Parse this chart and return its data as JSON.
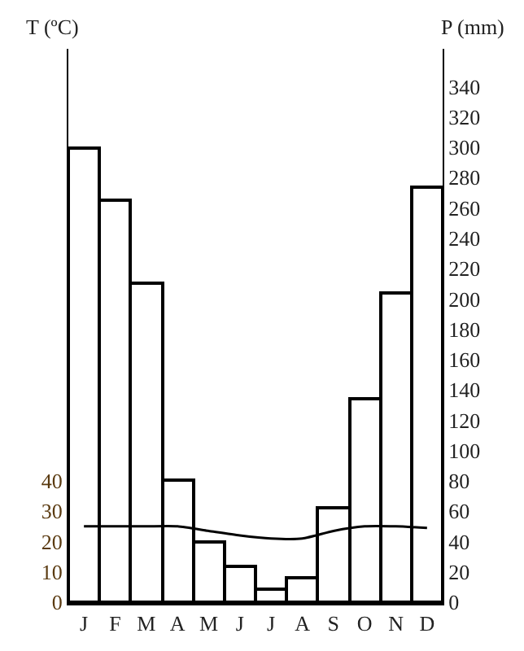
{
  "chart_data": {
    "type": "bar",
    "ylabel": "T (ºC)",
    "y2label": "P (mm)",
    "categories": [
      "J",
      "F",
      "M",
      "A",
      "M",
      "J",
      "J",
      "A",
      "S",
      "O",
      "N",
      "D"
    ],
    "series": [
      {
        "axis": "y2",
        "color": "#ffffff",
        "values": [
          300,
          265,
          210,
          80,
          40,
          24,
          9,
          16,
          62,
          134,
          204,
          274
        ]
      },
      {
        "type": "line",
        "axis": "y",
        "color": "#000000",
        "values": [
          25,
          25,
          25,
          25,
          23.5,
          22,
          21,
          21,
          23.5,
          25,
          25,
          24.5
        ]
      }
    ],
    "ylim": [
      0,
      182.5
    ],
    "yticks": [
      0,
      10,
      20,
      30,
      40
    ],
    "y2lim": [
      0,
      365
    ],
    "y2ticks": [
      0,
      20,
      40,
      60,
      80,
      100,
      120,
      140,
      160,
      180,
      200,
      220,
      240,
      260,
      280,
      300,
      320,
      340
    ],
    "grid": false,
    "marker": "none",
    "line_style": "solid"
  }
}
